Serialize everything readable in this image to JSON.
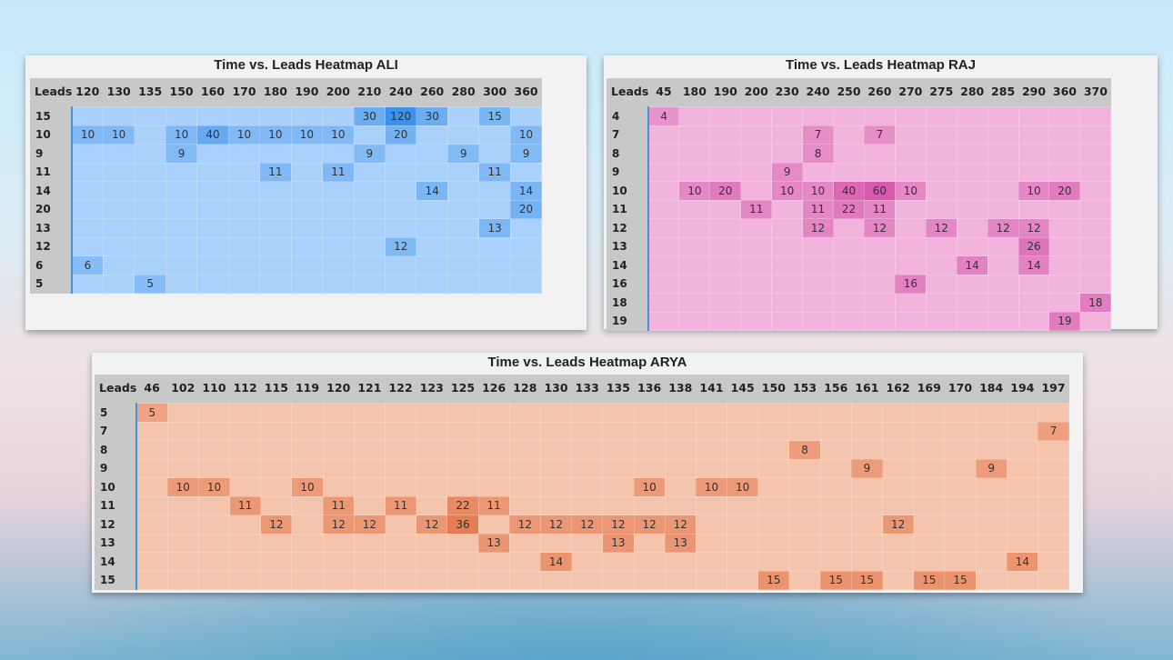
{
  "charts": [
    {
      "id": "ali",
      "base_color": "#a9d1fc",
      "max_color": "#3c91ea",
      "chart_data": {
        "type": "heatmap",
        "title": "Time vs. Leads Heatmap ALI",
        "corner_label": "Leads",
        "columns": [
          "120",
          "130",
          "135",
          "150",
          "160",
          "170",
          "180",
          "190",
          "200",
          "210",
          "240",
          "260",
          "280",
          "300",
          "360"
        ],
        "rows": [
          {
            "label": "15",
            "cells": {
              "210": 30,
              "240": 120,
              "260": 30,
              "300": 15
            }
          },
          {
            "label": "10",
            "cells": {
              "120": 10,
              "130": 10,
              "150": 10,
              "160": 40,
              "170": 10,
              "180": 10,
              "190": 10,
              "200": 10,
              "240": 20,
              "360": 10
            }
          },
          {
            "label": "9",
            "cells": {
              "150": 9,
              "210": 9,
              "280": 9,
              "360": 9
            }
          },
          {
            "label": "11",
            "cells": {
              "180": 11,
              "200": 11,
              "300": 11
            }
          },
          {
            "label": "14",
            "cells": {
              "260": 14,
              "360": 14
            }
          },
          {
            "label": "20",
            "cells": {
              "360": 20
            }
          },
          {
            "label": "13",
            "cells": {
              "300": 13
            }
          },
          {
            "label": "12",
            "cells": {
              "240": 12
            }
          },
          {
            "label": "6",
            "cells": {
              "120": 6
            }
          },
          {
            "label": "5",
            "cells": {
              "135": 5
            }
          }
        ]
      }
    },
    {
      "id": "raj",
      "base_color": "#f2b4dc",
      "max_color": "#d659ad",
      "chart_data": {
        "type": "heatmap",
        "title": "Time vs. Leads Heatmap RAJ",
        "corner_label": "Leads",
        "columns": [
          "45",
          "180",
          "190",
          "200",
          "230",
          "240",
          "250",
          "260",
          "270",
          "275",
          "280",
          "285",
          "290",
          "360",
          "370"
        ],
        "rows": [
          {
            "label": "4",
            "cells": {
              "45": 4
            }
          },
          {
            "label": "7",
            "cells": {
              "240": 7,
              "260": 7
            }
          },
          {
            "label": "8",
            "cells": {
              "240": 8
            }
          },
          {
            "label": "9",
            "cells": {
              "230": 9
            }
          },
          {
            "label": "10",
            "cells": {
              "180": 10,
              "190": 20,
              "230": 10,
              "240": 10,
              "250": 40,
              "260": 60,
              "270": 10,
              "290": 10,
              "360": 20
            }
          },
          {
            "label": "11",
            "cells": {
              "200": 11,
              "240": 11,
              "250": 22,
              "260": 11
            }
          },
          {
            "label": "12",
            "cells": {
              "240": 12,
              "260": 12,
              "275": 12,
              "285": 12,
              "290": 12
            }
          },
          {
            "label": "13",
            "cells": {
              "290": 26
            }
          },
          {
            "label": "14",
            "cells": {
              "280": 14,
              "290": 14
            }
          },
          {
            "label": "16",
            "cells": {
              "270": 16
            }
          },
          {
            "label": "18",
            "cells": {
              "370": 18
            }
          },
          {
            "label": "19",
            "cells": {
              "360": 19
            }
          }
        ]
      }
    },
    {
      "id": "arya",
      "base_color": "#f5c4ac",
      "max_color": "#e67c52",
      "chart_data": {
        "type": "heatmap",
        "title": "Time vs. Leads Heatmap ARYA",
        "corner_label": "Leads",
        "columns": [
          "46",
          "102",
          "110",
          "112",
          "115",
          "119",
          "120",
          "121",
          "122",
          "123",
          "125",
          "126",
          "128",
          "130",
          "133",
          "135",
          "136",
          "138",
          "141",
          "145",
          "150",
          "153",
          "156",
          "161",
          "162",
          "169",
          "170",
          "184",
          "194",
          "197"
        ],
        "rows": [
          {
            "label": "5",
            "cells": {
              "46": 5
            }
          },
          {
            "label": "7",
            "cells": {
              "197": 7
            }
          },
          {
            "label": "8",
            "cells": {
              "153": 8
            }
          },
          {
            "label": "9",
            "cells": {
              "161": 9,
              "184": 9
            }
          },
          {
            "label": "10",
            "cells": {
              "102": 10,
              "110": 10,
              "119": 10,
              "136": 10,
              "141": 10,
              "145": 10
            }
          },
          {
            "label": "11",
            "cells": {
              "112": 11,
              "120": 11,
              "122": 11,
              "125": 22,
              "126": 11
            }
          },
          {
            "label": "12",
            "cells": {
              "115": 12,
              "120": 12,
              "121": 12,
              "123": 12,
              "125": 36,
              "128": 12,
              "130": 12,
              "133": 12,
              "135": 12,
              "136": 12,
              "138": 12,
              "162": 12
            }
          },
          {
            "label": "13",
            "cells": {
              "126": 13,
              "135": 13,
              "138": 13
            }
          },
          {
            "label": "14",
            "cells": {
              "130": 14,
              "194": 14
            }
          },
          {
            "label": "15",
            "cells": {
              "150": 15,
              "156": 15,
              "161": 15,
              "169": 15,
              "170": 15
            }
          }
        ]
      }
    }
  ]
}
